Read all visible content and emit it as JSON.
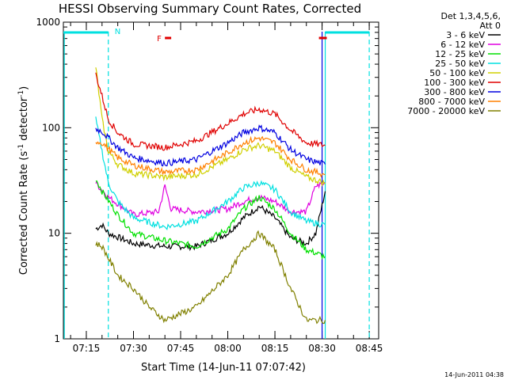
{
  "chart_data": {
    "type": "line",
    "title": "HESSI Observing Summary Count Rates, Corrected",
    "xlabel": "Start Time (14-Jun-11 07:07:42)",
    "ylabel": "Corrected Count Rate (s⁻¹ detector⁻¹)",
    "x_scale": "time",
    "y_scale": "log",
    "xlim": [
      "07:07:42",
      "08:48:00"
    ],
    "ylim": [
      1,
      1000
    ],
    "x_ticks": [
      "07:15",
      "07:30",
      "07:45",
      "08:00",
      "08:15",
      "08:30",
      "08:45"
    ],
    "y_ticks": [
      "1",
      "10",
      "100",
      "1000"
    ],
    "legend_header": [
      "Det 1,3,4,5,6,",
      "Att 0"
    ],
    "legend_position": "right, outside plot",
    "timestamp": "14-Jun-2011 04:38",
    "grid": false,
    "series": [
      {
        "name": "3 - 6 keV",
        "color": "#000000",
        "points": [
          [
            "07:18",
            11
          ],
          [
            "07:20",
            12
          ],
          [
            "07:22",
            10
          ],
          [
            "07:30",
            8
          ],
          [
            "07:40",
            7.5
          ],
          [
            "07:50",
            7.5
          ],
          [
            "08:00",
            10
          ],
          [
            "08:05",
            14
          ],
          [
            "08:10",
            18
          ],
          [
            "08:15",
            14
          ],
          [
            "08:20",
            9
          ],
          [
            "08:25",
            8
          ],
          [
            "08:28",
            10
          ],
          [
            "08:31",
            25
          ]
        ]
      },
      {
        "name": "6 - 12 keV",
        "color": "#e000e0",
        "points": [
          [
            "07:18",
            30
          ],
          [
            "07:22",
            22
          ],
          [
            "07:30",
            15
          ],
          [
            "07:38",
            16
          ],
          [
            "07:40",
            28
          ],
          [
            "07:42",
            17
          ],
          [
            "07:50",
            16
          ],
          [
            "08:00",
            17
          ],
          [
            "08:05",
            20
          ],
          [
            "08:10",
            22
          ],
          [
            "08:15",
            20
          ],
          [
            "08:20",
            16
          ],
          [
            "08:25",
            16
          ],
          [
            "08:28",
            28
          ],
          [
            "08:31",
            30
          ]
        ]
      },
      {
        "name": "12 - 25 keV",
        "color": "#00e000",
        "points": [
          [
            "07:18",
            33
          ],
          [
            "07:20",
            25
          ],
          [
            "07:25",
            15
          ],
          [
            "07:30",
            10
          ],
          [
            "07:40",
            8.5
          ],
          [
            "07:50",
            7.5
          ],
          [
            "08:00",
            11
          ],
          [
            "08:05",
            17
          ],
          [
            "08:10",
            22
          ],
          [
            "08:15",
            17
          ],
          [
            "08:20",
            10
          ],
          [
            "08:25",
            7
          ],
          [
            "08:31",
            6
          ]
        ]
      },
      {
        "name": "25 - 50 keV",
        "color": "#00e0e0",
        "points": [
          [
            "07:18",
            120
          ],
          [
            "07:20",
            60
          ],
          [
            "07:22",
            30
          ],
          [
            "07:25",
            20
          ],
          [
            "07:30",
            14
          ],
          [
            "07:40",
            11.5
          ],
          [
            "07:50",
            13
          ],
          [
            "08:00",
            20
          ],
          [
            "08:05",
            27
          ],
          [
            "08:10",
            30
          ],
          [
            "08:15",
            26
          ],
          [
            "08:20",
            16
          ],
          [
            "08:25",
            13
          ],
          [
            "08:31",
            12
          ]
        ]
      },
      {
        "name": "50 - 100 keV",
        "color": "#d0d000",
        "points": [
          [
            "07:18",
            380
          ],
          [
            "07:20",
            120
          ],
          [
            "07:22",
            60
          ],
          [
            "07:25",
            45
          ],
          [
            "07:30",
            37
          ],
          [
            "07:40",
            34
          ],
          [
            "07:50",
            36
          ],
          [
            "08:00",
            50
          ],
          [
            "08:05",
            62
          ],
          [
            "08:10",
            68
          ],
          [
            "08:15",
            60
          ],
          [
            "08:20",
            42
          ],
          [
            "08:25",
            34
          ],
          [
            "08:31",
            30
          ]
        ]
      },
      {
        "name": "100 - 300 keV",
        "color": "#e00000",
        "points": [
          [
            "07:18",
            320
          ],
          [
            "07:20",
            200
          ],
          [
            "07:22",
            120
          ],
          [
            "07:25",
            90
          ],
          [
            "07:30",
            70
          ],
          [
            "07:40",
            65
          ],
          [
            "07:50",
            75
          ],
          [
            "08:00",
            110
          ],
          [
            "08:05",
            135
          ],
          [
            "08:10",
            150
          ],
          [
            "08:15",
            135
          ],
          [
            "08:20",
            95
          ],
          [
            "08:25",
            72
          ],
          [
            "08:31",
            68
          ]
        ]
      },
      {
        "name": "300 - 800 keV",
        "color": "#0000e0",
        "points": [
          [
            "07:18",
            98
          ],
          [
            "07:20",
            92
          ],
          [
            "07:25",
            65
          ],
          [
            "07:30",
            52
          ],
          [
            "07:40",
            46
          ],
          [
            "07:50",
            50
          ],
          [
            "08:00",
            72
          ],
          [
            "08:05",
            90
          ],
          [
            "08:10",
            100
          ],
          [
            "08:15",
            90
          ],
          [
            "08:20",
            62
          ],
          [
            "08:25",
            50
          ],
          [
            "08:31",
            45
          ]
        ]
      },
      {
        "name": "800 - 7000 keV",
        "color": "#ff8000",
        "points": [
          [
            "07:18",
            75
          ],
          [
            "07:20",
            72
          ],
          [
            "07:25",
            52
          ],
          [
            "07:30",
            44
          ],
          [
            "07:40",
            38
          ],
          [
            "07:50",
            40
          ],
          [
            "08:00",
            58
          ],
          [
            "08:05",
            72
          ],
          [
            "08:10",
            80
          ],
          [
            "08:15",
            72
          ],
          [
            "08:20",
            50
          ],
          [
            "08:25",
            40
          ],
          [
            "08:31",
            36
          ]
        ]
      },
      {
        "name": "7000 - 20000 keV",
        "color": "#808000",
        "points": [
          [
            "07:18",
            8
          ],
          [
            "07:20",
            7.5
          ],
          [
            "07:25",
            4
          ],
          [
            "07:30",
            3
          ],
          [
            "07:35",
            2
          ],
          [
            "07:40",
            1.5
          ],
          [
            "07:50",
            2
          ],
          [
            "08:00",
            4
          ],
          [
            "08:05",
            7
          ],
          [
            "08:10",
            10
          ],
          [
            "08:15",
            7
          ],
          [
            "08:20",
            3
          ],
          [
            "08:25",
            1.5
          ],
          [
            "08:31",
            1.5
          ]
        ]
      }
    ],
    "annotations": [
      {
        "label": "N",
        "color": "#00e0e0",
        "time": "07:22"
      },
      {
        "label": "F",
        "color": "#e00000",
        "time_start": "07:40",
        "time_end": "07:42"
      }
    ],
    "markers": {
      "night_intervals": [
        [
          "07:07:42",
          "07:22"
        ],
        [
          "08:31",
          "08:45"
        ]
      ],
      "saa_red_interval": [
        "08:29",
        "08:31:30"
      ],
      "vertical_lines": [
        {
          "time": "07:08",
          "color": "#00e0e0",
          "style": "solid"
        },
        {
          "time": "07:22",
          "color": "#00e0e0",
          "style": "dashed"
        },
        {
          "time": "08:30",
          "color": "#0000e0",
          "style": "solid"
        },
        {
          "time": "08:31",
          "color": "#00e0e0",
          "style": "solid"
        },
        {
          "time": "08:45",
          "color": "#00e0e0",
          "style": "dashed"
        }
      ]
    }
  }
}
